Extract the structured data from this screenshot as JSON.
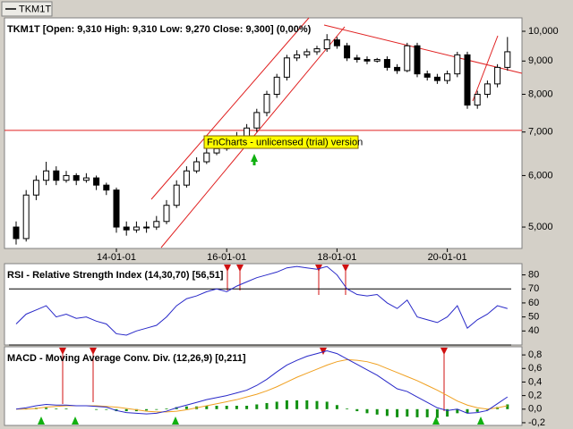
{
  "tab_label": "TKM1T",
  "watermark": "FnCharts - unlicensed (trial) version",
  "chart_data": [
    {
      "type": "candlestick",
      "title": "TKM1T [Open: 9,310  High: 9,310  Low: 9,270  Close: 9,300] (0,00%)",
      "categories": [
        null,
        null,
        null,
        null,
        null,
        null,
        null,
        null,
        null,
        null,
        "14-01-01",
        null,
        null,
        null,
        null,
        null,
        null,
        null,
        null,
        null,
        null,
        "16-01-01",
        null,
        null,
        null,
        null,
        null,
        null,
        null,
        null,
        null,
        null,
        "18-01-01",
        null,
        null,
        null,
        null,
        null,
        null,
        null,
        null,
        null,
        null,
        "20-01-01",
        null,
        null,
        null,
        null,
        null,
        null
      ],
      "open": [
        5000,
        4800,
        5600,
        5900,
        6100,
        5900,
        6000,
        5900,
        5950,
        5800,
        5700,
        5000,
        4950,
        5000,
        5000,
        5100,
        5400,
        5800,
        6100,
        6300,
        6500,
        6600,
        6800,
        6900,
        7100,
        7500,
        8000,
        8500,
        9100,
        9200,
        9300,
        9400,
        9700,
        9500,
        9100,
        9050,
        9000,
        9050,
        8800,
        8700,
        9500,
        8600,
        8500,
        8400,
        8600,
        9200,
        7700,
        8000,
        8300,
        8800
      ],
      "high": [
        5100,
        5700,
        6000,
        6300,
        6200,
        6100,
        6050,
        6050,
        6000,
        5850,
        5750,
        5100,
        5100,
        5100,
        5200,
        5500,
        5900,
        6200,
        6400,
        6600,
        6700,
        6900,
        7000,
        7200,
        7600,
        8100,
        8600,
        9200,
        9350,
        9400,
        9500,
        9900,
        9800,
        9600,
        9200,
        9150,
        9100,
        9150,
        8900,
        9600,
        9600,
        8700,
        8600,
        8700,
        9300,
        9300,
        8100,
        8400,
        8900,
        9800
      ],
      "low": [
        4700,
        4750,
        5500,
        5800,
        5800,
        5850,
        5800,
        5850,
        5700,
        5600,
        4900,
        4850,
        4900,
        4900,
        4950,
        5050,
        5350,
        5750,
        6050,
        6250,
        6450,
        6550,
        6750,
        6850,
        7000,
        7400,
        7900,
        8400,
        9000,
        9100,
        9200,
        9300,
        9400,
        9000,
        8950,
        8900,
        8950,
        8700,
        8600,
        8650,
        8500,
        8400,
        8300,
        8300,
        8500,
        7600,
        7600,
        7900,
        8200,
        8700
      ],
      "close": [
        4800,
        5600,
        5900,
        6100,
        5900,
        6000,
        5900,
        5950,
        5800,
        5700,
        5000,
        4950,
        5000,
        5000,
        5100,
        5400,
        5800,
        6100,
        6300,
        6500,
        6600,
        6800,
        6900,
        7100,
        7500,
        8000,
        8500,
        9100,
        9200,
        9300,
        9400,
        9700,
        9500,
        9100,
        9050,
        9000,
        9050,
        8800,
        8700,
        9500,
        8600,
        8500,
        8400,
        8600,
        9200,
        7700,
        8000,
        8300,
        8800,
        9300
      ],
      "log_scale": true,
      "ylim": [
        4635,
        10486
      ],
      "yticks": [
        {
          "value": 5000,
          "label": "5,000"
        },
        {
          "value": 6000,
          "label": "6,000"
        },
        {
          "value": 7000,
          "label": "7,000"
        },
        {
          "value": 8000,
          "label": "8,000"
        },
        {
          "value": 9000,
          "label": "9,000"
        },
        {
          "value": 10000,
          "label": "10,000"
        }
      ],
      "reference_line": 7040,
      "reference_color": "#e02020"
    },
    {
      "type": "line",
      "title": "RSI - Relative Strength Index (14,30,70) [56,51]",
      "color": "#2828c8",
      "values": [
        45,
        52,
        55,
        58,
        50,
        52,
        49,
        50,
        47,
        45,
        38,
        37,
        40,
        42,
        44,
        50,
        58,
        63,
        65,
        68,
        70,
        68,
        72,
        75,
        78,
        80,
        82,
        85,
        86,
        85,
        84,
        86,
        80,
        70,
        66,
        65,
        66,
        60,
        56,
        62,
        50,
        48,
        46,
        50,
        58,
        42,
        48,
        52,
        58,
        56
      ],
      "ylim": [
        30,
        88
      ],
      "yticks": [
        40,
        50,
        60,
        70,
        80
      ],
      "levels": [
        70,
        30
      ]
    },
    {
      "type": "combo",
      "title": "MACD - Moving Average Conv. Div. (12,26,9) [0,211]",
      "series": [
        {
          "type": "bar",
          "color": "#109010",
          "values": [
            0,
            0.01,
            0.02,
            0.02,
            0.01,
            0.01,
            0,
            0,
            -0.01,
            -0.01,
            -0.03,
            -0.03,
            -0.03,
            -0.02,
            -0.01,
            0.01,
            0.03,
            0.04,
            0.04,
            0.05,
            0.05,
            0.05,
            0.05,
            0.05,
            0.07,
            0.09,
            0.11,
            0.13,
            0.13,
            0.13,
            0.12,
            0.11,
            0.06,
            0.01,
            -0.03,
            -0.06,
            -0.08,
            -0.1,
            -0.12,
            -0.11,
            -0.12,
            -0.12,
            -0.13,
            -0.11,
            -0.06,
            -0.06,
            -0.04,
            -0.01,
            0.03,
            0.07
          ]
        },
        {
          "type": "line",
          "color": "#f0a020",
          "values": [
            0,
            0,
            0.01,
            0.03,
            0.04,
            0.05,
            0.05,
            0.05,
            0.05,
            0.04,
            0.03,
            0.01,
            -0.01,
            -0.03,
            -0.04,
            -0.04,
            -0.03,
            -0.01,
            0.02,
            0.05,
            0.08,
            0.11,
            0.14,
            0.18,
            0.22,
            0.27,
            0.33,
            0.4,
            0.47,
            0.53,
            0.59,
            0.65,
            0.7,
            0.73,
            0.72,
            0.7,
            0.66,
            0.6,
            0.54,
            0.48,
            0.42,
            0.35,
            0.28,
            0.2,
            0.12,
            0.06,
            0.02,
            0,
            0.02,
            0.05
          ]
        },
        {
          "type": "line",
          "color": "#2828c8",
          "values": [
            0,
            0.02,
            0.05,
            0.07,
            0.06,
            0.06,
            0.05,
            0.05,
            0.04,
            0.03,
            -0.02,
            -0.05,
            -0.06,
            -0.07,
            -0.06,
            -0.03,
            0.02,
            0.06,
            0.1,
            0.14,
            0.17,
            0.2,
            0.24,
            0.28,
            0.35,
            0.44,
            0.55,
            0.65,
            0.72,
            0.78,
            0.82,
            0.86,
            0.82,
            0.74,
            0.66,
            0.58,
            0.5,
            0.4,
            0.3,
            0.26,
            0.18,
            0.1,
            0.02,
            -0.02,
            0,
            -0.06,
            -0.05,
            -0.02,
            0.08,
            0.18
          ]
        }
      ],
      "ylim": [
        -0.24,
        0.92
      ],
      "yticks": [
        {
          "value": -0.2,
          "label": "-0,2"
        },
        {
          "value": 0,
          "label": "0,0"
        },
        {
          "value": 0.2,
          "label": "0,2"
        },
        {
          "value": 0.4,
          "label": "0,4"
        },
        {
          "value": 0.6,
          "label": "0,6"
        },
        {
          "value": 0.8,
          "label": "0,8"
        }
      ]
    }
  ]
}
